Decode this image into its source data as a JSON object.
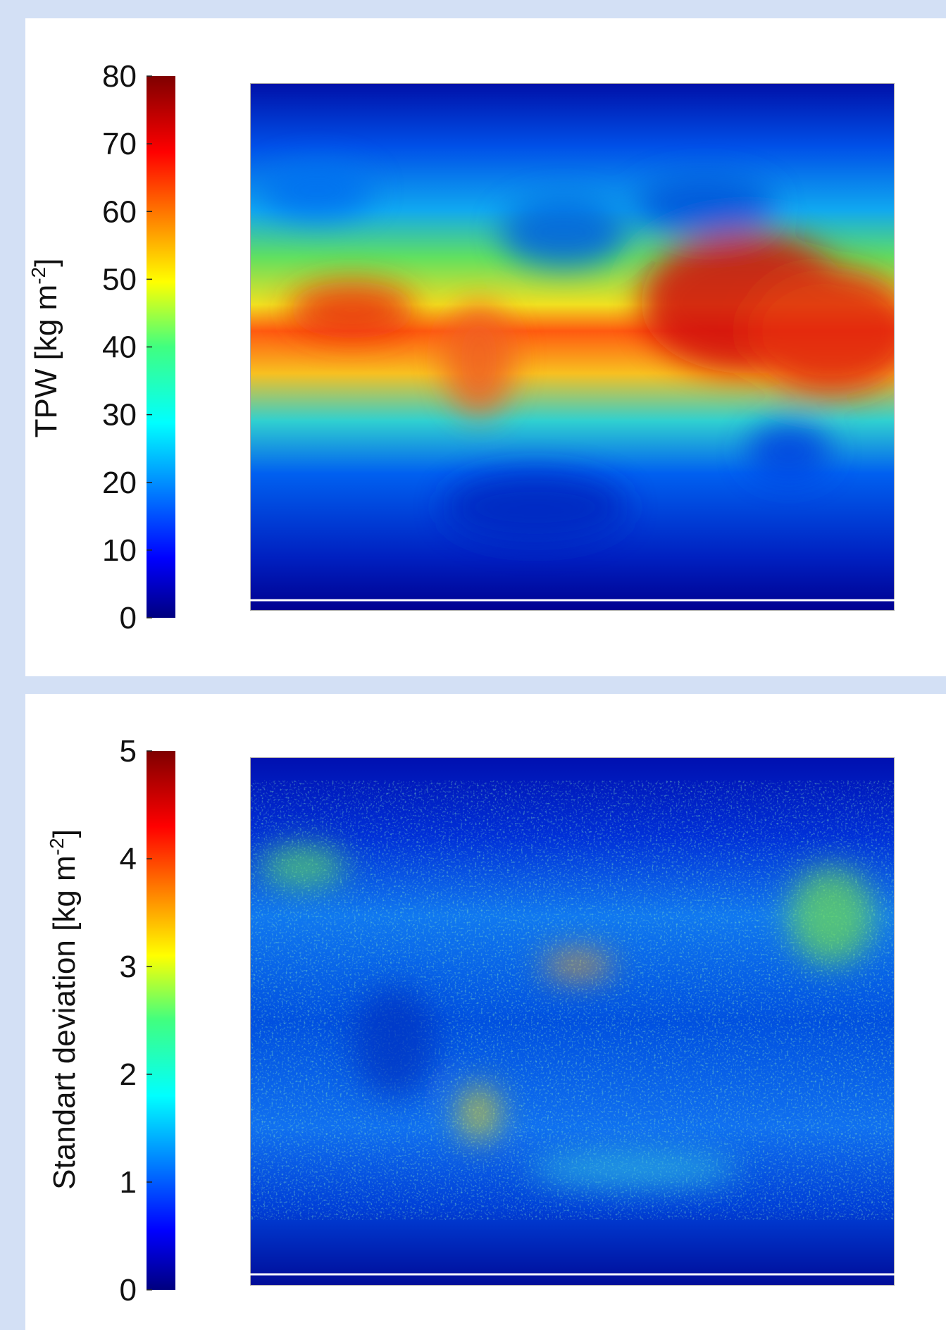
{
  "panels": [
    {
      "colorbar": {
        "label": {
          "text": "TPW [kg m",
          "superscript": "-2",
          "suffix": "]"
        },
        "lim": [
          0,
          80
        ],
        "ticks": [
          0,
          10,
          20,
          30,
          40,
          50,
          60,
          70,
          80
        ],
        "colormap": "jet"
      }
    },
    {
      "colorbar": {
        "label": {
          "text": "Standart deviation [kg m",
          "superscript": "-2",
          "suffix": "]"
        },
        "lim": [
          0,
          5
        ],
        "ticks": [
          0,
          1,
          2,
          3,
          4,
          5
        ],
        "colormap": "jet"
      }
    }
  ]
}
